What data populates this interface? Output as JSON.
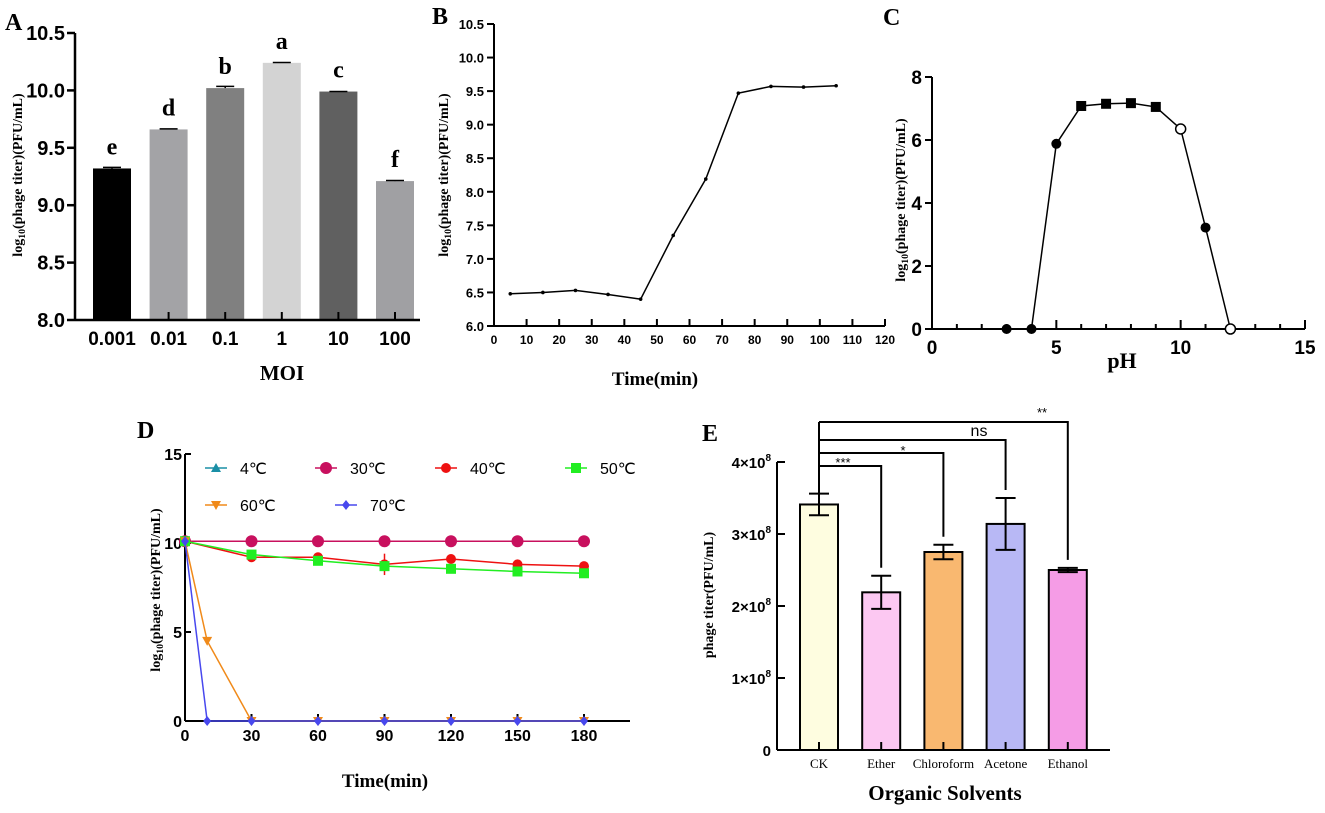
{
  "chart_data": [
    {
      "panel": "A",
      "type": "bar",
      "categories": [
        "0.001",
        "0.01",
        "0.1",
        "1",
        "10",
        "100"
      ],
      "values": [
        9.32,
        9.66,
        10.02,
        10.24,
        9.99,
        9.21
      ],
      "errors": [
        0.01,
        0.005,
        0.015,
        0.003,
        0.0,
        0.005
      ],
      "letters": [
        "e",
        "d",
        "b",
        "a",
        "c",
        "f"
      ],
      "colors": [
        "#000000",
        "#a3a3a6",
        "#808080",
        "#d3d3d3",
        "#606060",
        "#a0a0a3"
      ],
      "xlabel": "MOI",
      "ylabel": {
        "pre": "log",
        "sub": "10",
        "post": "(phage titer)(PFU/mL)"
      },
      "ylim": [
        8.0,
        10.5
      ],
      "yticks": [
        "8.0",
        "8.5",
        "9.0",
        "9.5",
        "10.0",
        "10.5"
      ]
    },
    {
      "panel": "B",
      "type": "line",
      "x": [
        5,
        15,
        25,
        35,
        45,
        55,
        65,
        75,
        85,
        95,
        105
      ],
      "y": [
        6.48,
        6.5,
        6.53,
        6.47,
        6.4,
        7.35,
        8.19,
        9.47,
        9.57,
        9.56,
        9.58
      ],
      "xlabel": "Time(min)",
      "ylabel": {
        "pre": "log",
        "sub": "10",
        "post": "(phage titer)(PFU/mL)"
      },
      "xlim": [
        0,
        120
      ],
      "ylim": [
        6.0,
        10.5
      ],
      "xticks": [
        "0",
        "10",
        "20",
        "30",
        "40",
        "50",
        "60",
        "70",
        "80",
        "90",
        "100",
        "110",
        "120"
      ],
      "yticks": [
        "6.0",
        "6.5",
        "7.0",
        "7.5",
        "8.0",
        "8.5",
        "9.0",
        "9.5",
        "10.0",
        "10.5"
      ]
    },
    {
      "panel": "C",
      "type": "line",
      "x": [
        3,
        4,
        5,
        6,
        7,
        8,
        9,
        10,
        11,
        12
      ],
      "y": [
        0,
        0,
        5.88,
        7.08,
        7.15,
        7.17,
        7.05,
        6.35,
        3.22,
        0
      ],
      "markers": [
        "circle",
        "circle",
        "circle",
        "square",
        "square",
        "square",
        "square",
        "open-circle",
        "circle",
        "open-circle"
      ],
      "xlabel": "pH",
      "ylabel": {
        "pre": "log",
        "sub": "10",
        "post": "(phage titer)(PFU/mL)"
      },
      "xlim": [
        0,
        15
      ],
      "ylim": [
        0,
        8
      ],
      "xticks": [
        "0",
        "5",
        "10",
        "15"
      ],
      "yticks": [
        "0",
        "2",
        "4",
        "6",
        "8"
      ]
    },
    {
      "panel": "D",
      "type": "line",
      "xlabel": "Time(min)",
      "ylabel": {
        "pre": "log",
        "sub": "10",
        "post": "(phage titer)(PFU/mL)"
      },
      "xlim": [
        0,
        195
      ],
      "ylim": [
        0,
        15
      ],
      "xticks": [
        "0",
        "30",
        "60",
        "90",
        "120",
        "150",
        "180"
      ],
      "yticks": [
        "0",
        "5",
        "10",
        "15"
      ],
      "legend_position": "top",
      "series": [
        {
          "name": "4℃",
          "color": "#1a8fa6",
          "marker": "triangle",
          "x": [
            0,
            30,
            60,
            90,
            120,
            150,
            180
          ],
          "y": [
            10.1,
            10.1,
            10.1,
            10.1,
            10.1,
            10.1,
            10.1
          ]
        },
        {
          "name": "30℃",
          "color": "#c8105e",
          "marker": "circle",
          "x": [
            0,
            30,
            60,
            90,
            120,
            150,
            180
          ],
          "y": [
            10.1,
            10.1,
            10.1,
            10.1,
            10.1,
            10.1,
            10.1
          ]
        },
        {
          "name": "40℃",
          "color": "#ee1111",
          "marker": "circle",
          "x": [
            0,
            30,
            60,
            90,
            120,
            150,
            180
          ],
          "y": [
            10.1,
            9.2,
            9.2,
            8.8,
            9.1,
            8.8,
            8.7
          ]
        },
        {
          "name": "50℃",
          "color": "#22ee22",
          "marker": "square",
          "x": [
            0,
            30,
            60,
            90,
            120,
            150,
            180
          ],
          "y": [
            10.1,
            9.35,
            9.0,
            8.7,
            8.55,
            8.4,
            8.3
          ]
        },
        {
          "name": "60℃",
          "color": "#f08a1a",
          "marker": "triangle-down",
          "x": [
            0,
            10,
            30,
            60,
            90,
            120,
            150,
            180
          ],
          "y": [
            10.1,
            4.5,
            0,
            0,
            0,
            0,
            0,
            0
          ]
        },
        {
          "name": "70℃",
          "color": "#4848ee",
          "marker": "diamond",
          "x": [
            0,
            10,
            30,
            60,
            90,
            120,
            150,
            180
          ],
          "y": [
            10.1,
            0,
            0,
            0,
            0,
            0,
            0,
            0
          ]
        }
      ]
    },
    {
      "panel": "E",
      "type": "bar",
      "categories": [
        "CK",
        "Ether",
        "Chloroform",
        "Acetone",
        "Ethanol"
      ],
      "values": [
        341000000.0,
        219000000.0,
        275000000.0,
        314000000.0,
        250000000.0
      ],
      "errors": [
        15000000.0,
        23000000.0,
        10000000.0,
        36000000.0,
        3000000.0
      ],
      "colors": [
        "#fefde0",
        "#fcc8f2",
        "#f9b870",
        "#b8b8f5",
        "#f59ce6"
      ],
      "xlabel": "Organic Solvents",
      "ylabel": "phage titer(PFU/mL)",
      "ylim": [
        0,
        400000000.0
      ],
      "yticks": [
        {
          "m": "0",
          "e": ""
        },
        {
          "m": "1×10",
          "e": "8"
        },
        {
          "m": "2×10",
          "e": "8"
        },
        {
          "m": "3×10",
          "e": "8"
        },
        {
          "m": "4×10",
          "e": "8"
        }
      ],
      "significance": [
        {
          "vs": "Ether",
          "label": "***"
        },
        {
          "vs": "Chloroform",
          "label": "*"
        },
        {
          "vs": "Acetone",
          "label": "ns"
        },
        {
          "vs": "Ethanol",
          "label": "**"
        }
      ]
    }
  ]
}
